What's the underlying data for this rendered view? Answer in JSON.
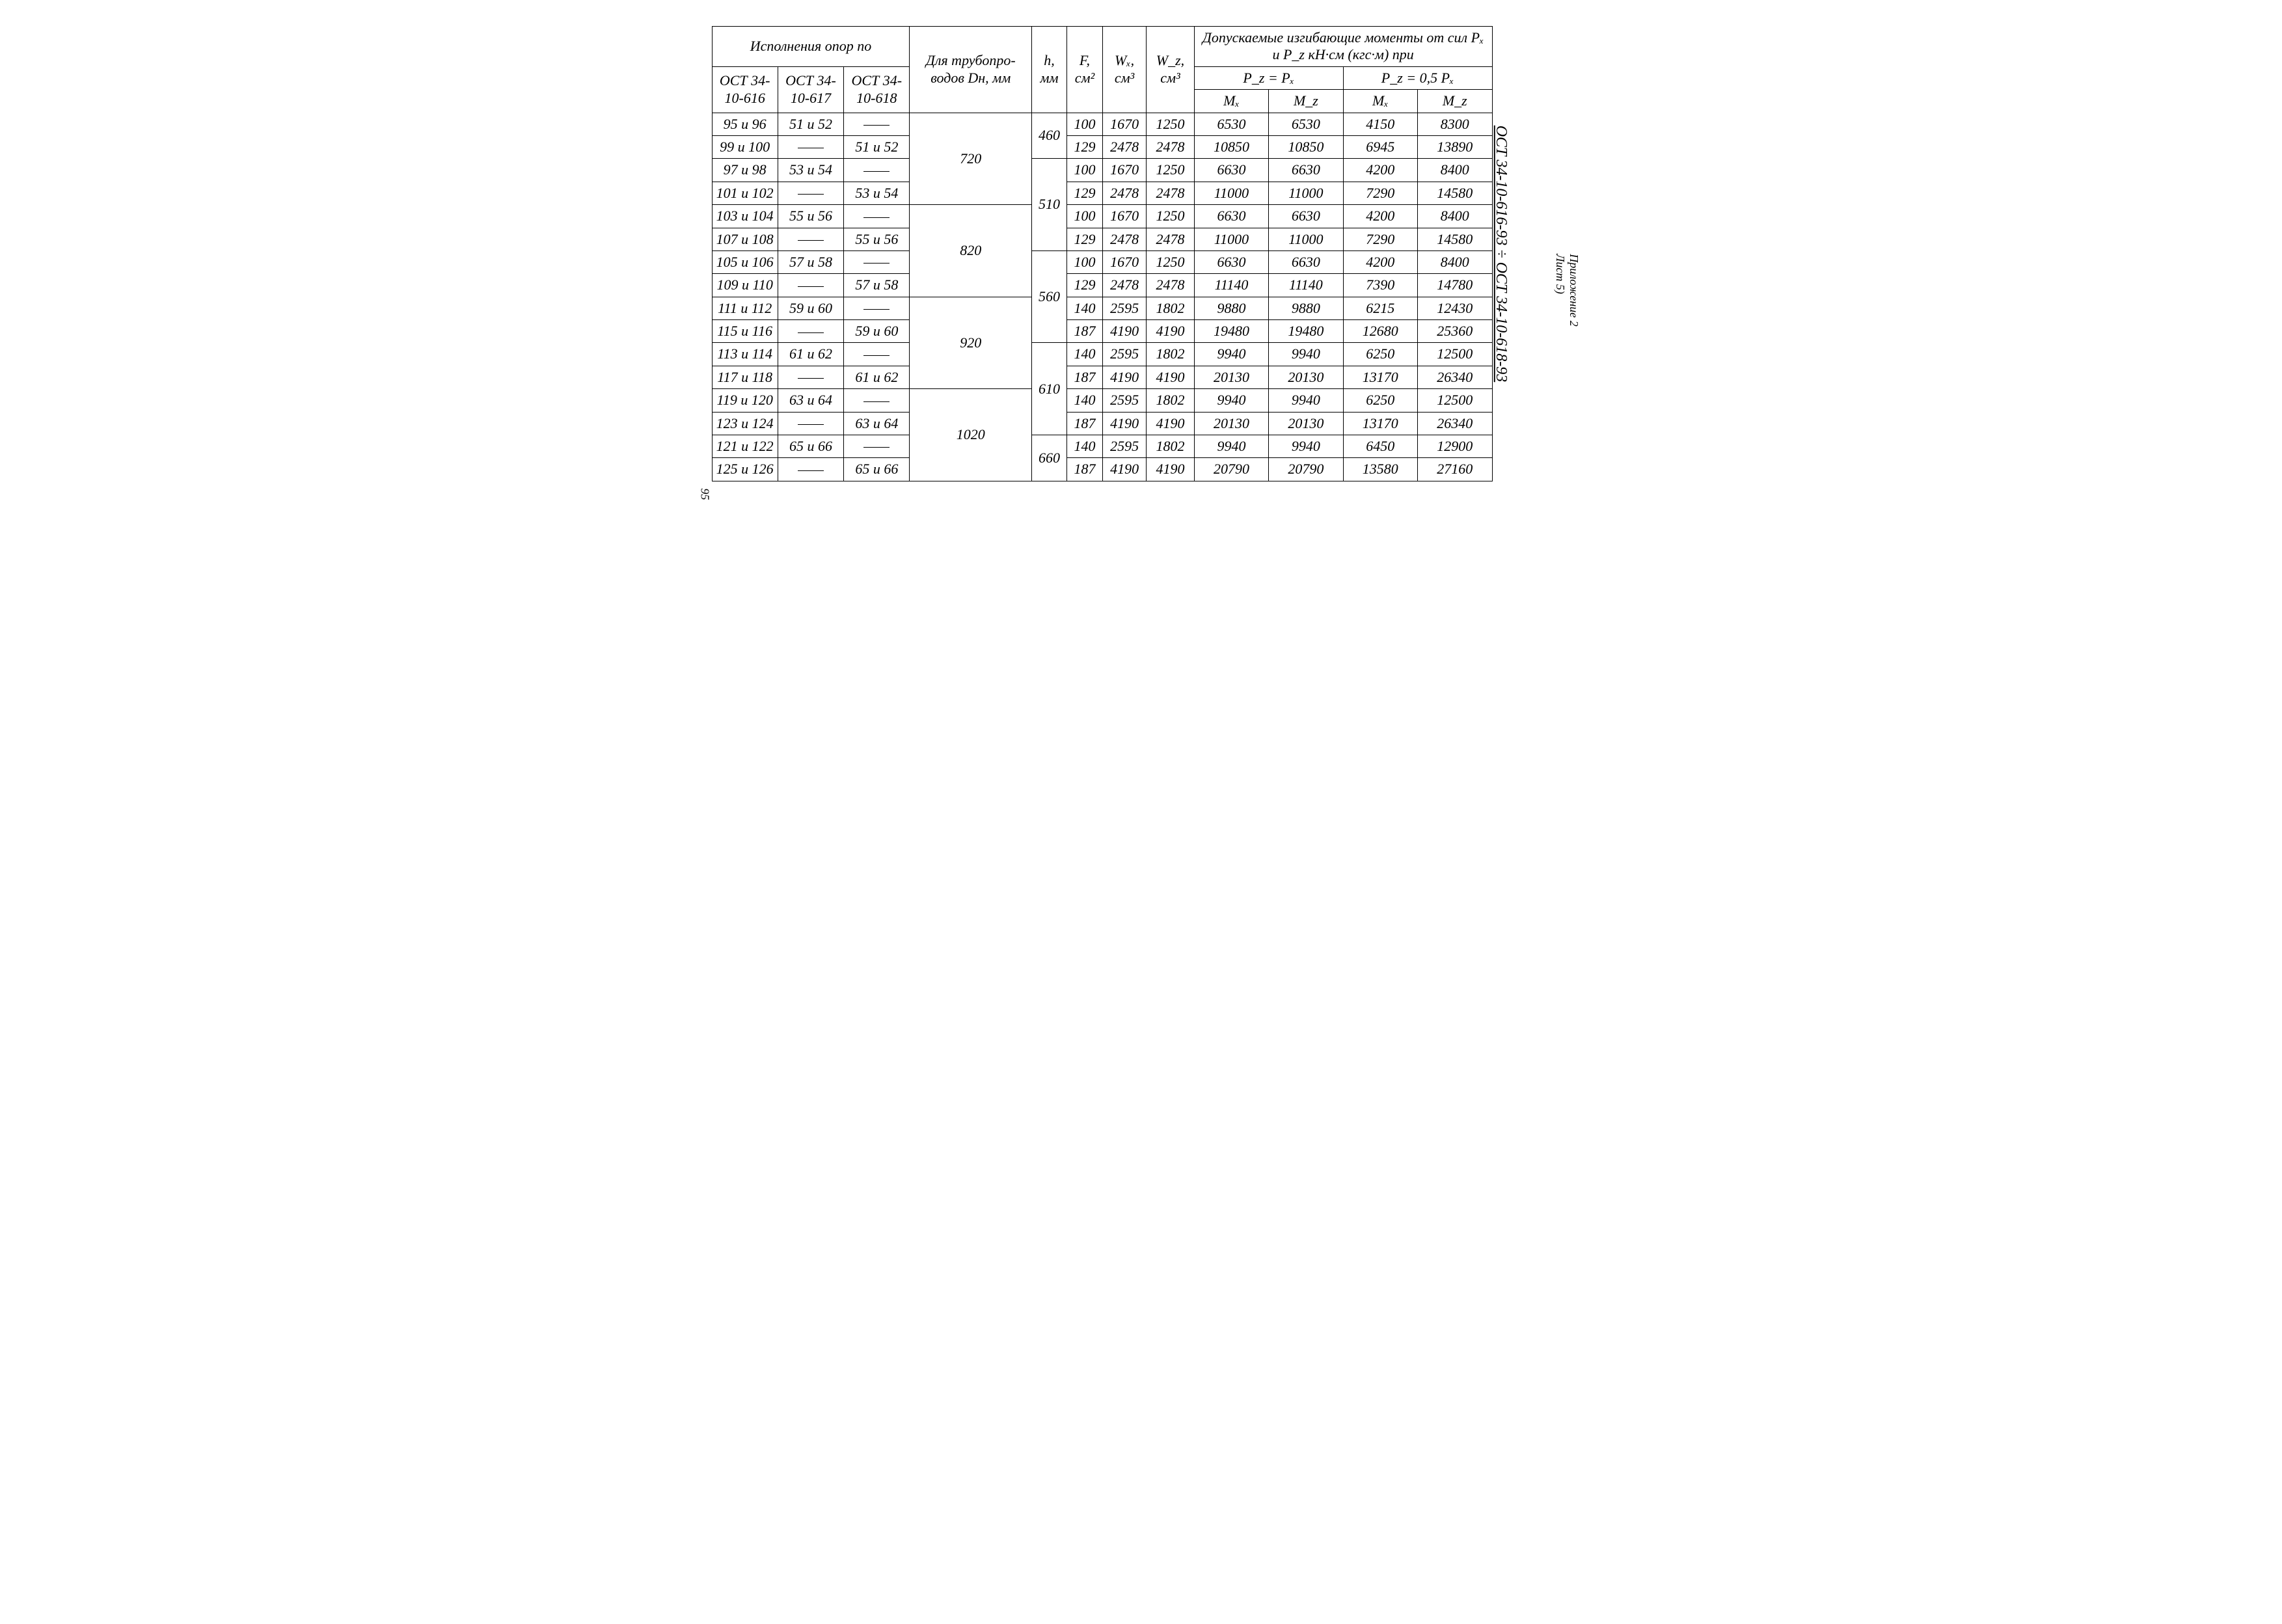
{
  "doc_ref": "ОСТ 34-10-616-93 ÷ ОСТ 34-10-618-93",
  "appendix": "Приложение 2",
  "sheet": "Лист 5)",
  "page_number": "95",
  "headers": {
    "ispolneniya": "Исполнения опор по",
    "ost616": "ОСТ 34-10-616",
    "ost617": "ОСТ 34-10-617",
    "ost618": "ОСТ 34-10-618",
    "dn": "Для трубопро-водов Dн, мм",
    "h": "h, мм",
    "f": "F, см²",
    "wx": "Wₓ, см³",
    "wz": "W_z, см³",
    "moments": "Допускаемые изгибающие моменты от сил Pₓ и P_z кН·см (кгс·м) при",
    "pzpx": "P_z = Pₓ",
    "pz05px": "P_z = 0,5 Pₓ",
    "mx": "Mₓ",
    "mz": "M_z"
  },
  "dn_groups": [
    {
      "dn": "720",
      "rows": 4
    },
    {
      "dn": "820",
      "rows": 4
    },
    {
      "dn": "920",
      "rows": 4
    },
    {
      "dn": "1020",
      "rows": 4
    }
  ],
  "h_groups": [
    {
      "h": "460",
      "start": 0,
      "span": 2
    },
    {
      "h": "510",
      "start": 2,
      "span": 4
    },
    {
      "h": "560",
      "start": 6,
      "span": 4
    },
    {
      "h": "610",
      "start": 10,
      "span": 4
    },
    {
      "h": "660",
      "start": 14,
      "span": 2
    }
  ],
  "rows": [
    {
      "c616": "95 и 96",
      "c617": "51 и 52",
      "c618": "—",
      "f": "100",
      "wx": "1670",
      "wz": "1250",
      "mx1": "6530",
      "mz1": "6530",
      "mx2": "4150",
      "mz2": "8300"
    },
    {
      "c616": "99 и 100",
      "c617": "—",
      "c618": "51 и 52",
      "f": "129",
      "wx": "2478",
      "wz": "2478",
      "mx1": "10850",
      "mz1": "10850",
      "mx2": "6945",
      "mz2": "13890"
    },
    {
      "c616": "97 и 98",
      "c617": "53 и 54",
      "c618": "—",
      "f": "100",
      "wx": "1670",
      "wz": "1250",
      "mx1": "6630",
      "mz1": "6630",
      "mx2": "4200",
      "mz2": "8400"
    },
    {
      "c616": "101 и 102",
      "c617": "—",
      "c618": "53 и 54",
      "f": "129",
      "wx": "2478",
      "wz": "2478",
      "mx1": "11000",
      "mz1": "11000",
      "mx2": "7290",
      "mz2": "14580"
    },
    {
      "c616": "103 и 104",
      "c617": "55 и 56",
      "c618": "—",
      "f": "100",
      "wx": "1670",
      "wz": "1250",
      "mx1": "6630",
      "mz1": "6630",
      "mx2": "4200",
      "mz2": "8400"
    },
    {
      "c616": "107 и 108",
      "c617": "—",
      "c618": "55 и 56",
      "f": "129",
      "wx": "2478",
      "wz": "2478",
      "mx1": "11000",
      "mz1": "11000",
      "mx2": "7290",
      "mz2": "14580"
    },
    {
      "c616": "105 и 106",
      "c617": "57 и 58",
      "c618": "—",
      "f": "100",
      "wx": "1670",
      "wz": "1250",
      "mx1": "6630",
      "mz1": "6630",
      "mx2": "4200",
      "mz2": "8400"
    },
    {
      "c616": "109 и 110",
      "c617": "—",
      "c618": "57 и 58",
      "f": "129",
      "wx": "2478",
      "wz": "2478",
      "mx1": "11140",
      "mz1": "11140",
      "mx2": "7390",
      "mz2": "14780"
    },
    {
      "c616": "111 и 112",
      "c617": "59 и 60",
      "c618": "—",
      "f": "140",
      "wx": "2595",
      "wz": "1802",
      "mx1": "9880",
      "mz1": "9880",
      "mx2": "6215",
      "mz2": "12430"
    },
    {
      "c616": "115 и 116",
      "c617": "—",
      "c618": "59 и 60",
      "f": "187",
      "wx": "4190",
      "wz": "4190",
      "mx1": "19480",
      "mz1": "19480",
      "mx2": "12680",
      "mz2": "25360"
    },
    {
      "c616": "113 и 114",
      "c617": "61 и 62",
      "c618": "—",
      "f": "140",
      "wx": "2595",
      "wz": "1802",
      "mx1": "9940",
      "mz1": "9940",
      "mx2": "6250",
      "mz2": "12500"
    },
    {
      "c616": "117 и 118",
      "c617": "—",
      "c618": "61 и 62",
      "f": "187",
      "wx": "4190",
      "wz": "4190",
      "mx1": "20130",
      "mz1": "20130",
      "mx2": "13170",
      "mz2": "26340"
    },
    {
      "c616": "119 и 120",
      "c617": "63 и 64",
      "c618": "—",
      "f": "140",
      "wx": "2595",
      "wz": "1802",
      "mx1": "9940",
      "mz1": "9940",
      "mx2": "6250",
      "mz2": "12500"
    },
    {
      "c616": "123 и 124",
      "c617": "—",
      "c618": "63 и 64",
      "f": "187",
      "wx": "4190",
      "wz": "4190",
      "mx1": "20130",
      "mz1": "20130",
      "mx2": "13170",
      "mz2": "26340"
    },
    {
      "c616": "121 и 122",
      "c617": "65 и 66",
      "c618": "—",
      "f": "140",
      "wx": "2595",
      "wz": "1802",
      "mx1": "9940",
      "mz1": "9940",
      "mx2": "6450",
      "mz2": "12900"
    },
    {
      "c616": "125 и 126",
      "c617": "—",
      "c618": "65 и 66",
      "f": "187",
      "wx": "4190",
      "wz": "4190",
      "mx1": "20790",
      "mz1": "20790",
      "mx2": "13580",
      "mz2": "27160"
    }
  ]
}
